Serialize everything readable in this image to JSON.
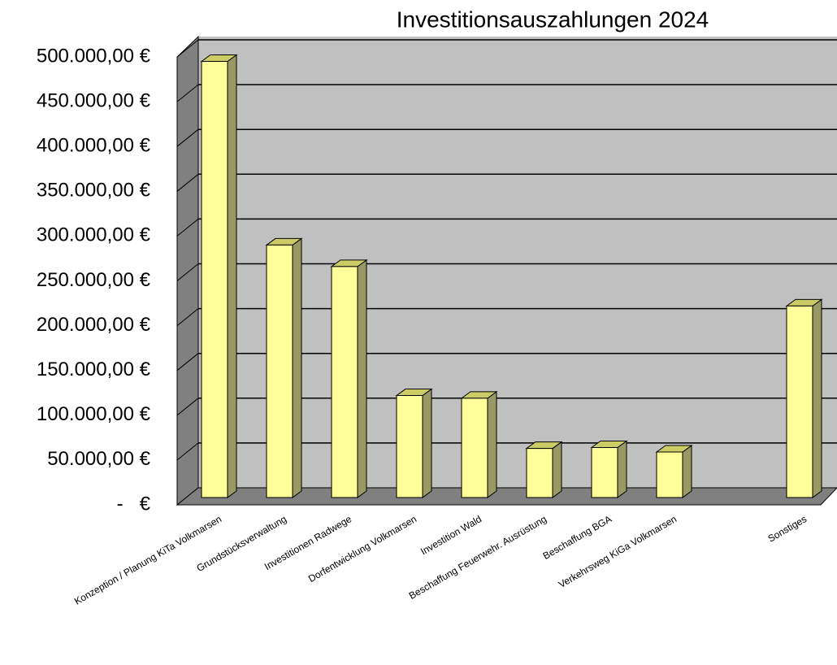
{
  "chart_data": {
    "type": "bar3d",
    "title": "Investitionsauszahlungen 2024",
    "categories": [
      "Konzeption / Planung KiTa Volkmarsen",
      "Grundstücksverwaltung",
      "Investitionen Radwege",
      "Dorfentwicklung Volkmarsen",
      "Investition Wald",
      "Beschaffung Feuerwehr. Ausrüstung",
      "Beschaffung BGA",
      "Verkehrsweg KiGa Volkmarsen",
      null,
      "Sonstiges"
    ],
    "values": [
      495000,
      290000,
      266000,
      122000,
      119000,
      63000,
      64000,
      59000,
      null,
      222000
    ],
    "color": "#ffff99",
    "ylim": [
      0,
      500000
    ],
    "yticks": [
      {
        "value": 0,
        "label": "-   €"
      },
      {
        "value": 50000,
        "label": "50.000,00 €"
      },
      {
        "value": 100000,
        "label": "100.000,00 €"
      },
      {
        "value": 150000,
        "label": "150.000,00 €"
      },
      {
        "value": 200000,
        "label": "200.000,00 €"
      },
      {
        "value": 250000,
        "label": "250.000,00 €"
      },
      {
        "value": 300000,
        "label": "300.000,00 €"
      },
      {
        "value": 350000,
        "label": "350.000,00 €"
      },
      {
        "value": 400000,
        "label": "400.000,00 €"
      },
      {
        "value": 450000,
        "label": "450.000,00 €"
      },
      {
        "value": 500000,
        "label": "500.000,00 €"
      }
    ],
    "grid": true
  }
}
